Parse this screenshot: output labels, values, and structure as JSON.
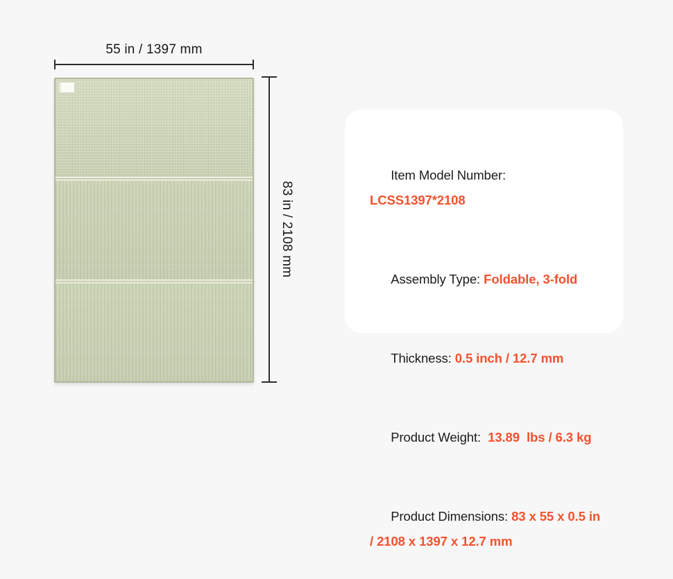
{
  "product": {
    "name": "foldable-tatami-mat"
  },
  "diagram": {
    "width_label": "55 in / 1397 mm",
    "height_label": "83 in / 2108 mm",
    "fold_panels": 3
  },
  "specs": {
    "items": [
      {
        "label": "Item Model Number: ",
        "value": "LCSS1397*2108"
      },
      {
        "label": "Assembly Type: ",
        "value": "Foldable, 3-fold"
      },
      {
        "label": "Thickness: ",
        "value": "0.5 inch / 12.7 mm"
      },
      {
        "label": "Product Weight:  ",
        "value": "13.89  lbs / 6.3 kg"
      },
      {
        "label": "Product Dimensions: ",
        "value": "83 x 55 x 0.5 in / 2108 x 1397 x 12.7 mm"
      }
    ]
  },
  "colors": {
    "accent": "#f4512e",
    "background": "#f7f7f7",
    "card": "#ffffff",
    "mat": "#ccd4b9",
    "measure_line": "#2b2b2b",
    "text": "#1b1b1b"
  }
}
